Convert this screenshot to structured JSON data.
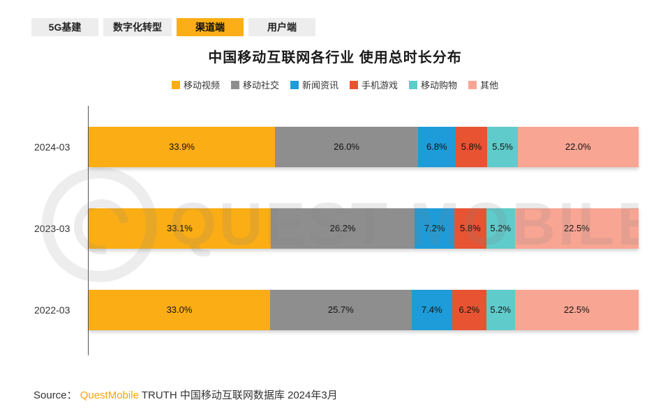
{
  "tabs": [
    {
      "label": "5G基建",
      "active": false
    },
    {
      "label": "数字化转型",
      "active": false
    },
    {
      "label": "渠道端",
      "active": true
    },
    {
      "label": "用户端",
      "active": false
    }
  ],
  "title": "中国移动互联网各行业 使用总时长分布",
  "watermark": "QUEST MOBILE",
  "chart_data": {
    "type": "bar",
    "orientation": "horizontal-stacked",
    "categories": [
      "2024-03",
      "2023-03",
      "2022-03"
    ],
    "series": [
      {
        "name": "移动视频",
        "color": "#faad14",
        "values": [
          33.9,
          33.1,
          33.0
        ]
      },
      {
        "name": "移动社交",
        "color": "#8e8e8e",
        "values": [
          26.0,
          26.2,
          25.7
        ]
      },
      {
        "name": "新闻资讯",
        "color": "#1e9cd9",
        "values": [
          6.8,
          7.2,
          7.4
        ]
      },
      {
        "name": "手机游戏",
        "color": "#e85332",
        "values": [
          5.8,
          5.8,
          6.2
        ]
      },
      {
        "name": "移动购物",
        "color": "#5fcbca",
        "values": [
          5.5,
          5.2,
          5.2
        ]
      },
      {
        "name": "其他",
        "color": "#f9a593",
        "values": [
          22.0,
          22.5,
          22.5
        ]
      }
    ],
    "value_suffix": "%",
    "xlim": [
      0,
      100
    ],
    "legend_position": "top-center",
    "grid": false
  },
  "source": {
    "prefix": "Source：",
    "brand": "QuestMobile",
    "rest": " TRUTH 中国移动互联网数据库 2024年3月"
  }
}
